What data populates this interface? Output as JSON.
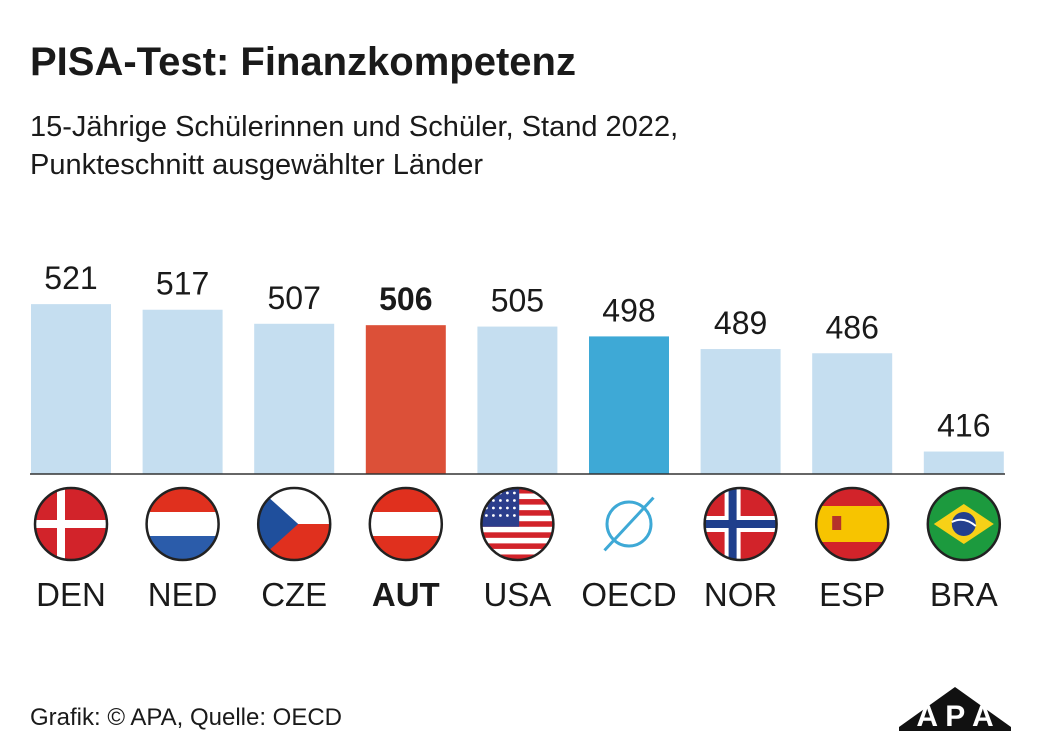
{
  "header": {
    "title": "PISA-Test: Finanzkompetenz",
    "subtitle_line1": "15-Jährige Schülerinnen und Schüler, Stand 2022,",
    "subtitle_line2": "Punkteschnitt ausgewählter Länder"
  },
  "chart_data": {
    "type": "bar",
    "title": "PISA-Test: Finanzkompetenz",
    "subtitle": "15-Jährige Schülerinnen und Schüler, Stand 2022, Punkteschnitt ausgewählter Länder",
    "categories": [
      "DEN",
      "NED",
      "CZE",
      "AUT",
      "USA",
      "OECD",
      "NOR",
      "ESP",
      "BRA"
    ],
    "values": [
      521,
      517,
      507,
      506,
      505,
      498,
      489,
      486,
      416
    ],
    "value_labels": [
      "521",
      "517",
      "507",
      "506",
      "505",
      "498",
      "489",
      "486",
      "416"
    ],
    "highlight": [
      "AUT"
    ],
    "flags": [
      "flag-denmark-icon",
      "flag-netherlands-icon",
      "flag-czechia-icon",
      "flag-austria-icon",
      "flag-usa-icon",
      "oecd-average-icon",
      "flag-norway-icon",
      "flag-spain-icon",
      "flag-brazil-icon"
    ],
    "xlabel": "",
    "ylabel": "",
    "grid": false,
    "legend": "none",
    "colors": {
      "default": "#c5def0",
      "highlight": "#dc5038",
      "oecd": "#3ea9d6",
      "axis": "#333333"
    }
  },
  "footer": {
    "source": "Grafik: © APA, Quelle: OECD"
  },
  "logo": {
    "text": "APA"
  }
}
